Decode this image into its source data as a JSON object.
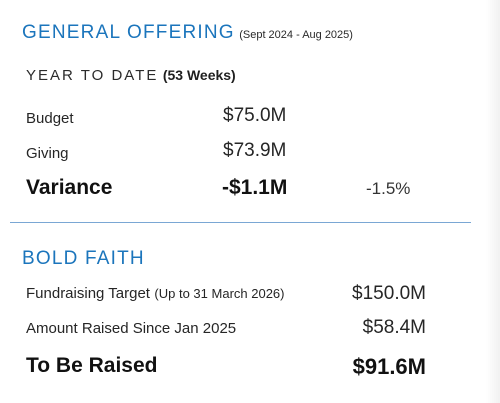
{
  "general_offering": {
    "title": "GENERAL OFFERING",
    "period": "(Sept 2024 - Aug 2025)",
    "ytd_label": "YEAR TO DATE",
    "ytd_weeks": "(53 Weeks)",
    "rows": [
      {
        "label": "Budget",
        "value": "$75.0M"
      },
      {
        "label": "Giving",
        "value": "$73.9M"
      }
    ],
    "variance": {
      "label": "Variance",
      "value": "-$1.1M",
      "percent": "-1.5%"
    }
  },
  "bold_faith": {
    "title": "BOLD FAITH",
    "target": {
      "label": "Fundraising Target",
      "note": "(Up to 31 March 2026)",
      "value": "$150.0M"
    },
    "raised": {
      "label": "Amount Raised Since Jan 2025",
      "value": "$58.4M"
    },
    "to_be_raised": {
      "label": "To Be Raised",
      "value": "$91.6M"
    }
  },
  "colors": {
    "accent": "#1b75bc",
    "divider": "#7aa7d4",
    "text": "#1f1f1f"
  }
}
